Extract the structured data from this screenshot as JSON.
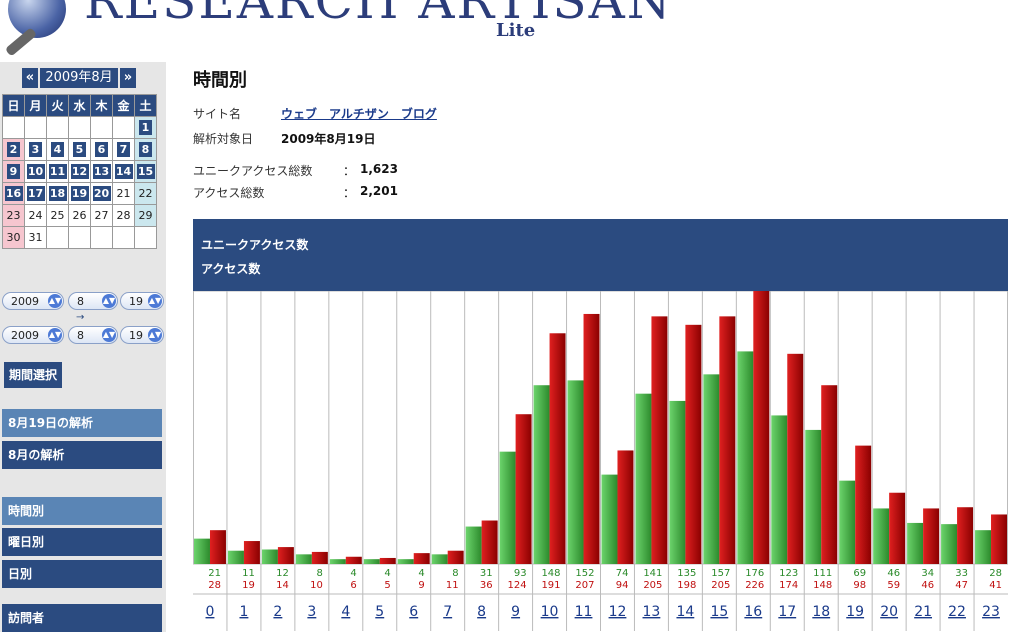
{
  "header": {
    "logo_text": "RESEARCH ARTISAN",
    "logo_sub": "Lite"
  },
  "calendar": {
    "prev": "«",
    "next": "»",
    "title": "2009年8月",
    "weekdays": [
      "日",
      "月",
      "火",
      "水",
      "木",
      "金",
      "土"
    ],
    "weeks": [
      [
        "",
        "",
        "",
        "",
        "",
        "",
        "1"
      ],
      [
        "2",
        "3",
        "4",
        "5",
        "6",
        "7",
        "8"
      ],
      [
        "9",
        "10",
        "11",
        "12",
        "13",
        "14",
        "15"
      ],
      [
        "16",
        "17",
        "18",
        "19",
        "20",
        "21",
        "22"
      ],
      [
        "23",
        "24",
        "25",
        "26",
        "27",
        "28",
        "29"
      ],
      [
        "30",
        "31",
        "",
        "",
        "",
        "",
        ""
      ]
    ],
    "linked_max_day": 20,
    "selected_day": 19
  },
  "date_range": {
    "from": {
      "year": "2009",
      "month": "8",
      "day": "19"
    },
    "arrow": "→",
    "to": {
      "year": "2009",
      "month": "8",
      "day": "19"
    },
    "button": "期間選択"
  },
  "menu": {
    "analysis": [
      "8月19日の解析",
      "8月の解析"
    ],
    "views": [
      "時間別",
      "曜日別",
      "日別"
    ],
    "visitors": "訪問者"
  },
  "main": {
    "title": "時間別",
    "site_label": "サイト名",
    "site_name": "ウェブ　アルチザン　ブログ",
    "date_label": "解析対象日",
    "date_value": "2009年8月19日",
    "unique_label": "ユニークアクセス総数",
    "unique_value": "1,623",
    "total_label": "アクセス総数",
    "total_value": "2,201",
    "colon": "："
  },
  "colors": {
    "unique": "#3aa53a",
    "total": "#c01010",
    "header": "#2b4b80"
  },
  "chart_data": {
    "type": "bar",
    "categories": [
      "0",
      "1",
      "2",
      "3",
      "4",
      "5",
      "6",
      "7",
      "8",
      "9",
      "10",
      "11",
      "12",
      "13",
      "14",
      "15",
      "16",
      "17",
      "18",
      "19",
      "20",
      "21",
      "22",
      "23"
    ],
    "series": [
      {
        "name": "ユニークアクセス数",
        "values": [
          21,
          11,
          12,
          8,
          4,
          4,
          4,
          8,
          31,
          93,
          148,
          152,
          74,
          141,
          135,
          157,
          176,
          123,
          111,
          69,
          46,
          34,
          33,
          28
        ]
      },
      {
        "name": "アクセス数",
        "values": [
          28,
          19,
          14,
          10,
          6,
          5,
          9,
          11,
          36,
          124,
          191,
          207,
          94,
          205,
          198,
          205,
          226,
          174,
          148,
          98,
          59,
          46,
          47,
          41
        ]
      }
    ],
    "ylim": [
      0,
      226
    ],
    "grid": true
  }
}
